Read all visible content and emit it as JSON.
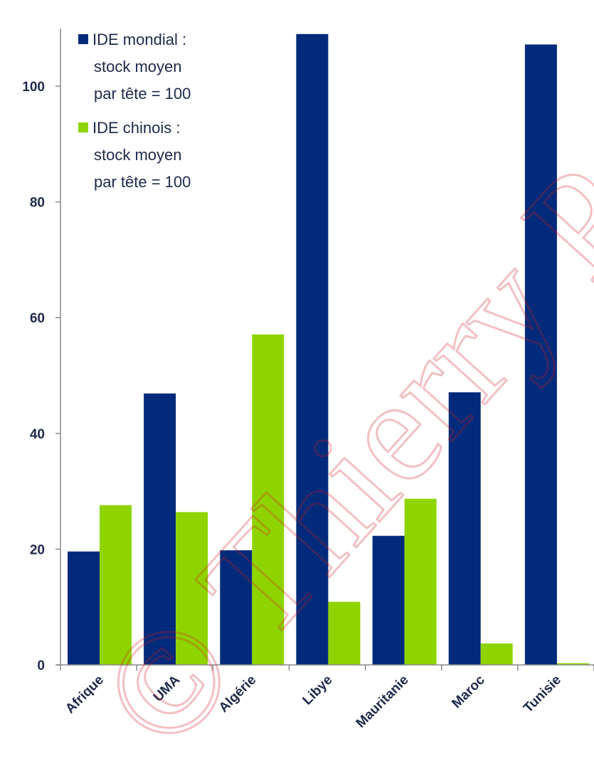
{
  "chart_data": {
    "type": "bar",
    "categories": [
      "Afrique",
      "UMA",
      "Algérie",
      "Libye",
      "Mauritanie",
      "Maroc",
      "Tunisie"
    ],
    "series": [
      {
        "name": "IDE mondial : stock moyen par tête = 100",
        "color": "#012a7a",
        "values": [
          19.6,
          46.9,
          19.8,
          109,
          22.3,
          47.1,
          107.2
        ]
      },
      {
        "name": "IDE chinois : stock moyen par tête = 100",
        "color": "#8fd400",
        "values": [
          27.6,
          26.4,
          57.1,
          10.9,
          28.7,
          3.7,
          0.3
        ]
      }
    ],
    "ylim": [
      0,
      110
    ],
    "yticks": [
      0,
      20,
      40,
      60,
      80,
      100
    ],
    "ytick_labels": [
      "0",
      "20",
      "40",
      "60",
      "80",
      "100"
    ],
    "legend": {
      "placement": "top-left",
      "entries": [
        {
          "lines": [
            "IDE mondial :",
            "stock moyen",
            "par tête = 100"
          ],
          "color": "#012a7a"
        },
        {
          "lines": [
            "IDE chinois :",
            "stock moyen",
            "par tête = 100"
          ],
          "color": "#8fd400"
        }
      ]
    },
    "grid": false
  },
  "watermark": {
    "text": "© Thierry P",
    "color": "#d11f2b"
  }
}
